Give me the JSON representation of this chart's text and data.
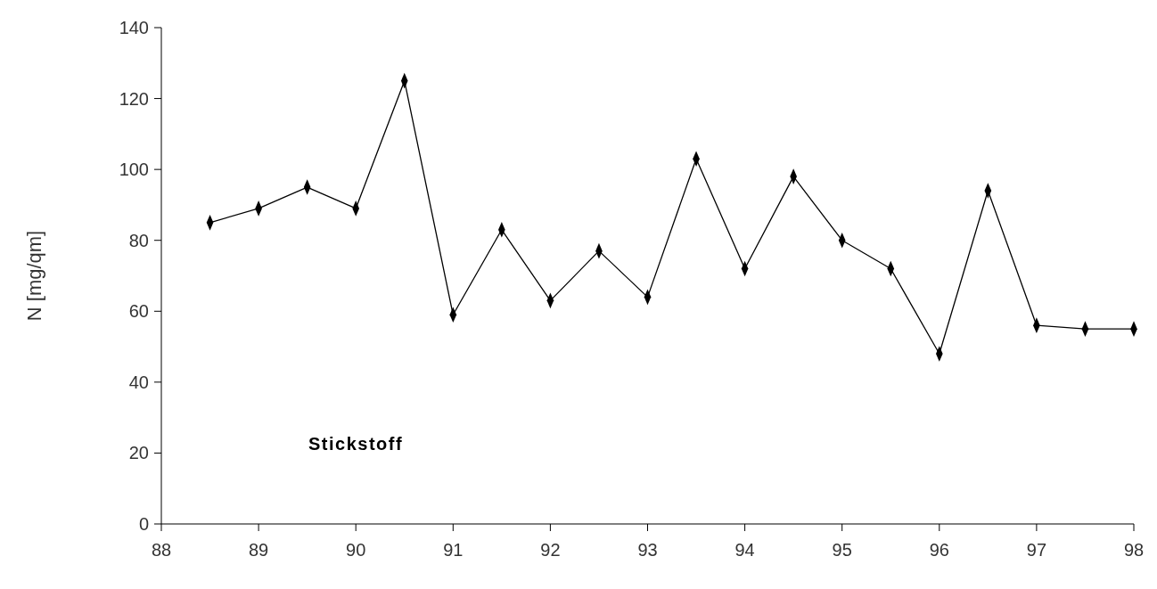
{
  "chart_data": {
    "type": "line",
    "ylabel": "N [mg/qm]",
    "annotations": [
      "Stickstoff"
    ],
    "x": [
      88.5,
      89,
      89.5,
      90,
      90.5,
      91,
      91.5,
      92,
      92.5,
      93,
      93.5,
      94,
      94.5,
      95,
      95.5,
      96,
      96.5,
      97,
      97.5,
      98
    ],
    "series": [
      {
        "color": "#000000",
        "values": [
          85,
          89,
          95,
          89,
          125,
          59,
          83,
          63,
          77,
          64,
          103,
          72,
          98,
          80,
          72,
          48,
          94,
          56,
          55,
          55
        ]
      }
    ],
    "xlim": [
      88,
      98
    ],
    "xticks": [
      88,
      89,
      90,
      91,
      92,
      93,
      94,
      95,
      96,
      97,
      98
    ],
    "ylim": [
      0,
      140
    ],
    "yticks": [
      0,
      20,
      40,
      60,
      80,
      100,
      120,
      140
    ],
    "grid": false,
    "marker": "diamond",
    "line_style": "solid"
  }
}
